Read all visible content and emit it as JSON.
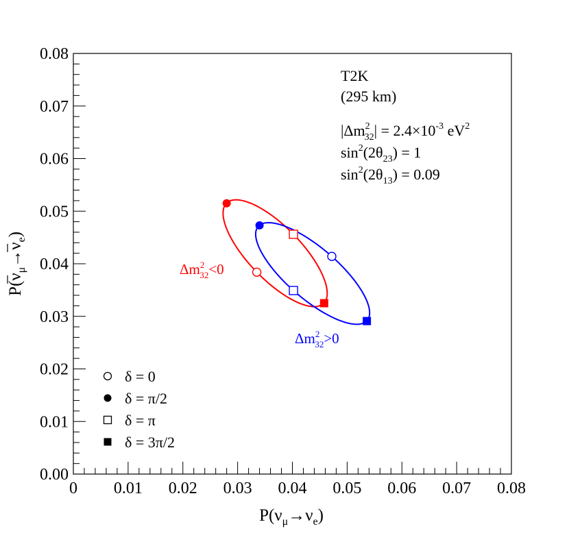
{
  "chart_data": {
    "type": "scatter",
    "xlabel": {
      "base": "P(ν",
      "sub1": "μ",
      "arrow": "→ν",
      "sub2": "e",
      "close": ")"
    },
    "ylabel": {
      "base": "P(ν",
      "sub1": "μ",
      "arrow": "→ν",
      "sub2": "e",
      "close": ")",
      "bars": true
    },
    "xlim": [
      0,
      0.08
    ],
    "ylim": [
      0,
      0.08
    ],
    "xticks": [
      "0",
      "0.01",
      "0.02",
      "0.03",
      "0.04",
      "0.05",
      "0.06",
      "0.07",
      "0.08"
    ],
    "yticks": [
      "0.00",
      "0.01",
      "0.02",
      "0.03",
      "0.04",
      "0.05",
      "0.06",
      "0.07",
      "0.08"
    ],
    "grid": false,
    "legend_position": "bottom-left",
    "annotations": {
      "experiment": "T2K",
      "baseline": "(295 km)",
      "dm32_prefix": "|Δm",
      "dm32_sup": "2",
      "dm32_sub": "32",
      "dm32_mid": "| = 2.4×10",
      "dm32_exp": "-3",
      "dm32_unit": " eV",
      "dm32_unit_sup": "2",
      "sin23_pre": "sin",
      "sin23_sup": "2",
      "sin23_mid": "(2θ",
      "sin23_sub": "23",
      "sin23_post": ") = 1",
      "sin13_pre": "sin",
      "sin13_sup": "2",
      "sin13_mid": "(2θ",
      "sin13_sub": "13",
      "sin13_post": ") = 0.09"
    },
    "series": [
      {
        "name_pre": "Δm",
        "name_sup": "2",
        "name_sub": "32",
        "name_post": "<0",
        "color": "#ff0000",
        "ellipse": [
          [
            0.0335,
            0.0384
          ],
          [
            0.028,
            0.0515
          ],
          [
            0.0402,
            0.0456
          ],
          [
            0.0458,
            0.0325
          ]
        ],
        "points": [
          {
            "delta": "0",
            "marker": "open-circle",
            "x": 0.0335,
            "y": 0.0384
          },
          {
            "delta": "π/2",
            "marker": "filled-circle",
            "x": 0.028,
            "y": 0.0515
          },
          {
            "delta": "π",
            "marker": "open-square",
            "x": 0.0402,
            "y": 0.0456
          },
          {
            "delta": "3π/2",
            "marker": "filled-square",
            "x": 0.0458,
            "y": 0.0325
          }
        ]
      },
      {
        "name_pre": "Δm",
        "name_sup": "2",
        "name_sub": "32",
        "name_post": ">0",
        "color": "#0000ff",
        "ellipse": [
          [
            0.0472,
            0.0414
          ],
          [
            0.034,
            0.0473
          ],
          [
            0.0402,
            0.0349
          ],
          [
            0.0536,
            0.0291
          ]
        ],
        "points": [
          {
            "delta": "0",
            "marker": "open-circle",
            "x": 0.0472,
            "y": 0.0414
          },
          {
            "delta": "π/2",
            "marker": "filled-circle",
            "x": 0.034,
            "y": 0.0473
          },
          {
            "delta": "π",
            "marker": "open-square",
            "x": 0.0402,
            "y": 0.0349
          },
          {
            "delta": "3π/2",
            "marker": "filled-square",
            "x": 0.0536,
            "y": 0.0291
          }
        ]
      }
    ],
    "legend": [
      {
        "marker": "open-circle",
        "label": "δ = 0"
      },
      {
        "marker": "filled-circle",
        "label": "δ = π/2"
      },
      {
        "marker": "open-square",
        "label": "δ = π"
      },
      {
        "marker": "filled-square",
        "label": "δ = 3π/2"
      }
    ]
  }
}
